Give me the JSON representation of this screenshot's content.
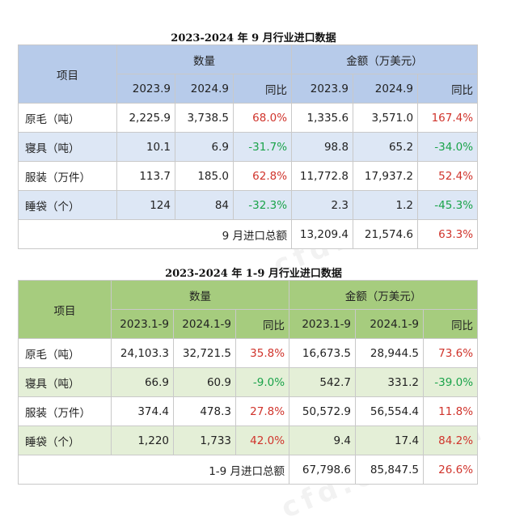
{
  "table1": {
    "title": "2023-2024 年 9 月行业进口数据",
    "header": {
      "item": "项目",
      "quantity": "数量",
      "amount": "金额（万美元）",
      "sub": [
        "2023.9",
        "2024.9",
        "同比",
        "2023.9",
        "2024.9",
        "同比"
      ]
    },
    "rows": [
      {
        "item": "原毛（吨）",
        "q1": "2,225.9",
        "q2": "3,738.5",
        "qy": "68.0%",
        "a1": "1,335.6",
        "a2": "3,571.0",
        "ay": "167.4%"
      },
      {
        "item": "寝具（吨）",
        "q1": "10.1",
        "q2": "6.9",
        "qy": "-31.7%",
        "a1": "98.8",
        "a2": "65.2",
        "ay": "-34.0%"
      },
      {
        "item": "服装（万件）",
        "q1": "113.7",
        "q2": "185.0",
        "qy": "62.8%",
        "a1": "11,772.8",
        "a2": "17,937.2",
        "ay": "52.4%"
      },
      {
        "item": "睡袋（个）",
        "q1": "124",
        "q2": "84",
        "qy": "-32.3%",
        "a1": "2.3",
        "a2": "1.2",
        "ay": "-45.3%"
      }
    ],
    "total": {
      "label": "9 月进口总额",
      "a1": "13,209.4",
      "a2": "21,574.6",
      "ay": "63.3%"
    }
  },
  "table2": {
    "title": "2023-2024 年 1-9 月行业进口数据",
    "header": {
      "item": "项目",
      "quantity": "数量",
      "amount": "金额（万美元）",
      "sub": [
        "2023.1-9",
        "2024.1-9",
        "同比",
        "2023.1-9",
        "2024.1-9",
        "同比"
      ]
    },
    "rows": [
      {
        "item": "原毛（吨）",
        "q1": "24,103.3",
        "q2": "32,721.5",
        "qy": "35.8%",
        "a1": "16,673.5",
        "a2": "28,944.5",
        "ay": "73.6%"
      },
      {
        "item": "寝具（吨）",
        "q1": "66.9",
        "q2": "60.9",
        "qy": "-9.0%",
        "a1": "542.7",
        "a2": "331.2",
        "ay": "-39.0%"
      },
      {
        "item": "服装（万件）",
        "q1": "374.4",
        "q2": "478.3",
        "qy": "27.8%",
        "a1": "50,572.9",
        "a2": "56,554.4",
        "ay": "11.8%"
      },
      {
        "item": "睡袋（个）",
        "q1": "1,220",
        "q2": "1,733",
        "qy": "42.0%",
        "a1": "9.4",
        "a2": "17.4",
        "ay": "84.2%"
      }
    ],
    "total": {
      "label": "1-9 月进口总额",
      "a1": "67,798.6",
      "a2": "85,847.5",
      "ay": "26.6%"
    }
  },
  "watermark": "cfd.com.cn",
  "colors": {
    "blue_header": "#b7cbea",
    "blue_alt_row": "#dde7f5",
    "green_header": "#a6cc7e",
    "green_alt_row": "#e4efd7",
    "positive": "#d0342c",
    "negative": "#1aa34a"
  }
}
